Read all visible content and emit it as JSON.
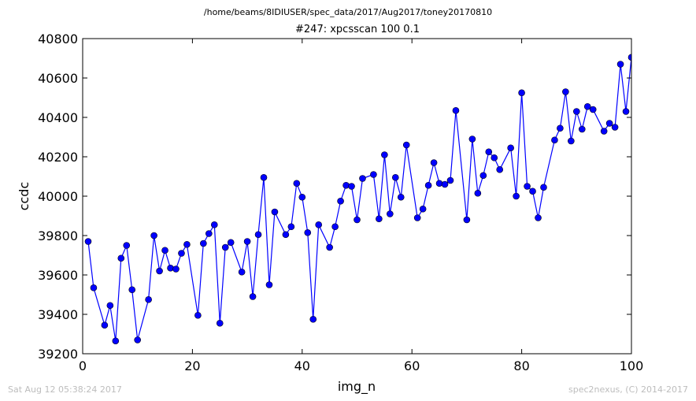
{
  "header": {
    "path": "/home/beams/8IDIUSER/spec_data/2017/Aug2017/toney20170810",
    "scan_title": "#247: xpcsscan 100 0.1"
  },
  "footer": {
    "timestamp": "Sat Aug 12 05:38:24 2017",
    "credit": "spec2nexus, (C) 2014-2017"
  },
  "chart_data": {
    "type": "line",
    "title": "#247: xpcsscan 100 0.1",
    "xlabel": "img_n",
    "ylabel": "ccdc",
    "xlim": [
      0,
      100
    ],
    "ylim": [
      39200,
      40800
    ],
    "xticks": [
      0,
      20,
      40,
      60,
      80,
      100
    ],
    "yticks": [
      39200,
      39400,
      39600,
      39800,
      40000,
      40200,
      40400,
      40600,
      40800
    ],
    "grid": false,
    "line_color": "#0000ff",
    "marker_color": "#0000ff",
    "marker": "circle",
    "series": [
      {
        "x": [
          1,
          2,
          4,
          5,
          6,
          7,
          8,
          9,
          10,
          12,
          13,
          14,
          15,
          16,
          17,
          18,
          19,
          21,
          22,
          23,
          24,
          25,
          26,
          27,
          29,
          30,
          31,
          32,
          33,
          34,
          35,
          37,
          38,
          39,
          40,
          41,
          42,
          43,
          45,
          46,
          47,
          48,
          49,
          50,
          51,
          53,
          54,
          55,
          56,
          57,
          58,
          59,
          61,
          62,
          63,
          64,
          65,
          66,
          67,
          68,
          70,
          71,
          72,
          73,
          74,
          75,
          76,
          78,
          79,
          80,
          81,
          82,
          83,
          84,
          86,
          87,
          88,
          89,
          90,
          91,
          92,
          93,
          95,
          96,
          97,
          98,
          99,
          100
        ],
        "y": [
          39770,
          39535,
          39345,
          39445,
          39265,
          39685,
          39750,
          39525,
          39270,
          39475,
          39800,
          39620,
          39725,
          39635,
          39630,
          39710,
          39755,
          39395,
          39760,
          39810,
          39855,
          39355,
          39740,
          39765,
          39615,
          39770,
          39490,
          39805,
          40095,
          39550,
          39920,
          39805,
          39845,
          40065,
          39995,
          39815,
          39375,
          39855,
          39740,
          39845,
          39975,
          40055,
          40050,
          39880,
          40090,
          40110,
          39885,
          40210,
          39910,
          40095,
          39995,
          40260,
          39890,
          39935,
          40055,
          40170,
          40065,
          40060,
          40080,
          40435,
          39880,
          40290,
          40015,
          40105,
          40225,
          40195,
          40135,
          40245,
          40000,
          40525,
          40050,
          40025,
          39890,
          40045,
          40285,
          40345,
          40530,
          40280,
          40430,
          40340,
          40455,
          40440,
          40330,
          40370,
          40350,
          40670,
          40430,
          40705
        ]
      }
    ]
  }
}
